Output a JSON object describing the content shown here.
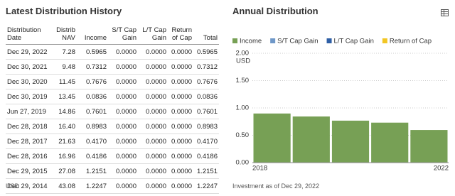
{
  "table": {
    "title": "Latest Distribution History",
    "columns": [
      "Distribution Date",
      "Distrib NAV",
      "Income",
      "S/T Cap Gain",
      "L/T Cap Gain",
      "Return of Cap",
      "Total"
    ],
    "rows": [
      [
        "Dec 29, 2022",
        "7.28",
        "0.5965",
        "0.0000",
        "0.0000",
        "0.0000",
        "0.5965"
      ],
      [
        "Dec 30, 2021",
        "9.48",
        "0.7312",
        "0.0000",
        "0.0000",
        "0.0000",
        "0.7312"
      ],
      [
        "Dec 30, 2020",
        "11.45",
        "0.7676",
        "0.0000",
        "0.0000",
        "0.0000",
        "0.7676"
      ],
      [
        "Dec 30, 2019",
        "13.45",
        "0.0836",
        "0.0000",
        "0.0000",
        "0.0000",
        "0.0836"
      ],
      [
        "Jun 27, 2019",
        "14.86",
        "0.7601",
        "0.0000",
        "0.0000",
        "0.0000",
        "0.7601"
      ],
      [
        "Dec 28, 2018",
        "16.40",
        "0.8983",
        "0.0000",
        "0.0000",
        "0.0000",
        "0.8983"
      ],
      [
        "Dec 28, 2017",
        "21.63",
        "0.4170",
        "0.0000",
        "0.0000",
        "0.0000",
        "0.4170"
      ],
      [
        "Dec 28, 2016",
        "16.96",
        "0.4186",
        "0.0000",
        "0.0000",
        "0.0000",
        "0.4186"
      ],
      [
        "Dec 29, 2015",
        "27.08",
        "1.2151",
        "0.0000",
        "0.0000",
        "0.0000",
        "1.2151"
      ],
      [
        "Dec 29, 2014",
        "43.08",
        "1.2247",
        "0.0000",
        "0.0000",
        "0.0000",
        "1.2247"
      ]
    ],
    "footnote": "USD"
  },
  "chart_data": {
    "type": "stacked-bar",
    "title": "Annual Distribution",
    "categories": [
      "2018",
      null,
      null,
      null,
      "2022"
    ],
    "series": [
      {
        "name": "Income",
        "color": "#77a055",
        "values": [
          0.8983,
          0.8437,
          0.7676,
          0.7312,
          0.5965
        ]
      },
      {
        "name": "S/T Cap Gain",
        "color": "#6f98c8",
        "values": [
          0,
          0,
          0,
          0,
          0
        ]
      },
      {
        "name": "L/T Cap Gain",
        "color": "#2f5fa6",
        "values": [
          0,
          0,
          0,
          0,
          0
        ]
      },
      {
        "name": "Return of Cap",
        "color": "#f2c624",
        "values": [
          0,
          0,
          0,
          0,
          0
        ]
      }
    ],
    "ylim": [
      0,
      2
    ],
    "yticks": [
      {
        "value": 0,
        "label": "0.00"
      },
      {
        "value": 0.5,
        "label": "0.50"
      },
      {
        "value": 1,
        "label": "1.00"
      },
      {
        "value": 1.5,
        "label": "1.50"
      },
      {
        "value": 2,
        "label": "2.00"
      }
    ],
    "y_unit": "USD",
    "grid": true,
    "footnote": "Investment as of Dec 29, 2022"
  }
}
